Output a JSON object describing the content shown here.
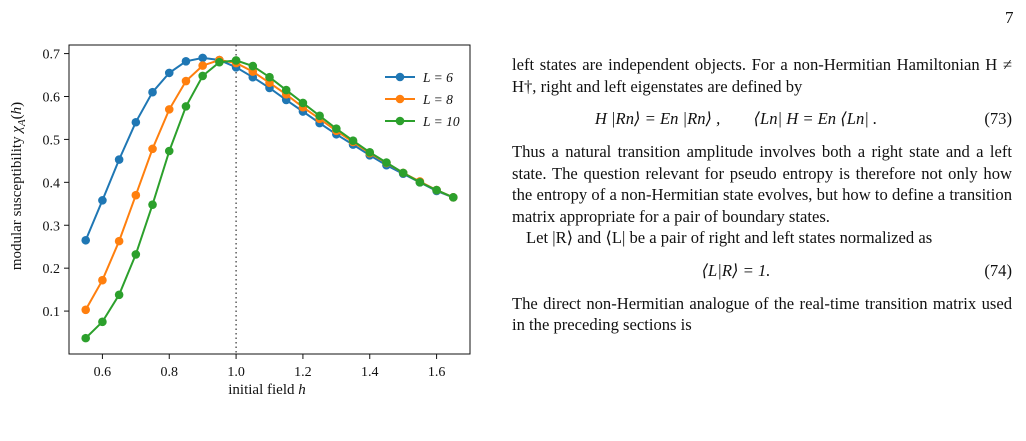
{
  "page_number": "7",
  "figure": {
    "chart_data": {
      "type": "line",
      "xlabel": "initial field h",
      "ylabel": "modular susceptibility χA(h)",
      "xlim": [
        0.5,
        1.7
      ],
      "ylim": [
        0.0,
        0.72
      ],
      "xticks": [
        0.6,
        0.8,
        1.0,
        1.2,
        1.4,
        1.6
      ],
      "yticks": [
        0.1,
        0.2,
        0.3,
        0.4,
        0.5,
        0.6,
        0.7
      ],
      "xtick_labels": [
        "0.6",
        "0.8",
        "1.0",
        "1.2",
        "1.4",
        "1.6"
      ],
      "ytick_labels": [
        "0.1",
        "0.2",
        "0.3",
        "0.4",
        "0.5",
        "0.6",
        "0.7"
      ],
      "vline": 1.0,
      "legend_position": "top-right",
      "x": [
        0.55,
        0.6,
        0.65,
        0.7,
        0.75,
        0.8,
        0.85,
        0.9,
        0.95,
        1.0,
        1.05,
        1.1,
        1.15,
        1.2,
        1.25,
        1.3,
        1.35,
        1.4,
        1.45,
        1.5,
        1.55,
        1.6,
        1.65
      ],
      "series": [
        {
          "name": "L = 6",
          "color": "#1f77b4",
          "values": [
            0.265,
            0.358,
            0.453,
            0.54,
            0.61,
            0.655,
            0.682,
            0.69,
            0.685,
            0.668,
            0.645,
            0.62,
            0.592,
            0.565,
            0.538,
            0.512,
            0.488,
            0.463,
            0.44,
            0.42,
            0.4,
            0.38,
            0.365
          ]
        },
        {
          "name": "L = 8",
          "color": "#ff7f0e",
          "values": [
            0.103,
            0.172,
            0.263,
            0.37,
            0.478,
            0.57,
            0.636,
            0.672,
            0.685,
            0.678,
            0.658,
            0.632,
            0.605,
            0.575,
            0.548,
            0.52,
            0.494,
            0.468,
            0.445,
            0.422,
            0.402,
            0.382,
            0.365
          ]
        },
        {
          "name": "L = 10",
          "color": "#2ca02c",
          "values": [
            0.037,
            0.075,
            0.138,
            0.232,
            0.348,
            0.473,
            0.577,
            0.648,
            0.68,
            0.684,
            0.671,
            0.645,
            0.615,
            0.585,
            0.555,
            0.525,
            0.497,
            0.47,
            0.446,
            0.422,
            0.4,
            0.382,
            0.365
          ]
        }
      ]
    }
  },
  "text": {
    "para1": "left states are independent objects. For a non-Hermitian Hamiltonian H ≠ H†, right and left eigenstates are defined by",
    "eq73": "H |Rn⟩ = En |Rn⟩ ,        ⟨Ln| H = En ⟨Ln| .",
    "eq73_num": "(73)",
    "para2": "Thus a natural transition amplitude involves both a right state and a left state. The question relevant for pseudo entropy is therefore not only how the entropy of a non-Hermitian state evolves, but how to define a transition matrix appropriate for a pair of boundary states.",
    "para3": "Let |R⟩ and ⟨L| be a pair of right and left states normalized as",
    "eq74": "⟨L|R⟩ = 1.",
    "eq74_num": "(74)",
    "para4": "The direct non-Hermitian analogue of the real-time transition matrix used in the preceding sections is"
  }
}
